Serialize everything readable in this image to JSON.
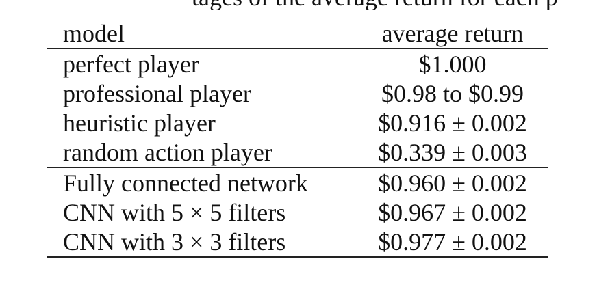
{
  "caption_fragment": "tages of the average return for each p",
  "table": {
    "headers": {
      "model": "model",
      "average_return": "average return"
    },
    "group1": [
      {
        "model": "perfect player",
        "return": "$1.000"
      },
      {
        "model": "professional player",
        "return": "$0.98 to $0.99"
      },
      {
        "model": "heuristic player",
        "return": "$0.916 ± 0.002"
      },
      {
        "model": "random action player",
        "return": "$0.339 ± 0.003"
      }
    ],
    "group2": [
      {
        "model": "Fully connected network",
        "return": "$0.960 ± 0.002"
      },
      {
        "model": "CNN with 5 × 5 filters",
        "return": "$0.967 ± 0.002"
      },
      {
        "model": "CNN with 3 × 3 filters",
        "return": "$0.977 ± 0.002"
      }
    ]
  }
}
